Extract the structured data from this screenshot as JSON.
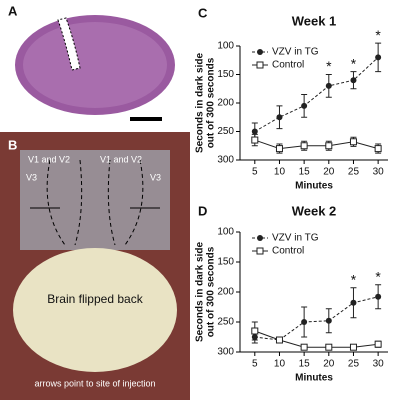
{
  "panels": {
    "a": "A",
    "b": "B",
    "c": "C",
    "d": "D"
  },
  "photo": {
    "label_left_v12": "V1 and V2",
    "label_right_v12": "V1 and V2",
    "label_left_v3": "V3",
    "label_right_v3": "V3",
    "brain": "Brain flipped back",
    "caption": "arrows point to site of injection"
  },
  "chart_data": [
    {
      "type": "line",
      "title": "Week 1",
      "xlabel": "Minutes",
      "ylabel": [
        "Seconds in dark side",
        "out of 300 seconds"
      ],
      "x": [
        5,
        10,
        15,
        20,
        25,
        30
      ],
      "xlim": [
        2,
        32
      ],
      "xticks": [
        5,
        10,
        15,
        20,
        25,
        30
      ],
      "ylim": [
        100,
        300
      ],
      "yticks": [
        100,
        150,
        200,
        250,
        300
      ],
      "invert_y": true,
      "legend": "upper left",
      "series": [
        {
          "name": "VZV in TG",
          "color": "#222222",
          "marker": "filled-circle",
          "dashed": true,
          "values": [
            250,
            225,
            205,
            170,
            160,
            120
          ],
          "errors": [
            15,
            20,
            20,
            20,
            15,
            25
          ]
        },
        {
          "name": "Control",
          "color": "#222222",
          "marker": "open-square",
          "dashed": false,
          "values": [
            265,
            280,
            275,
            275,
            268,
            280
          ],
          "errors": [
            10,
            8,
            8,
            8,
            8,
            8
          ]
        }
      ],
      "annotations": [
        {
          "x": 20,
          "text": "*"
        },
        {
          "x": 25,
          "text": "*"
        },
        {
          "x": 30,
          "text": "*"
        }
      ]
    },
    {
      "type": "line",
      "title": "Week 2",
      "xlabel": "Minutes",
      "ylabel": [
        "Seconds in dark side",
        "out of 300 seconds"
      ],
      "x": [
        5,
        10,
        15,
        20,
        25,
        30
      ],
      "xlim": [
        2,
        32
      ],
      "xticks": [
        5,
        10,
        15,
        20,
        25,
        30
      ],
      "ylim": [
        100,
        300
      ],
      "yticks": [
        100,
        150,
        200,
        250,
        300
      ],
      "invert_y": true,
      "legend": "upper left",
      "series": [
        {
          "name": "VZV in TG",
          "color": "#222222",
          "marker": "filled-circle",
          "dashed": true,
          "values": [
            275,
            280,
            250,
            248,
            218,
            208
          ],
          "errors": [
            10,
            5,
            25,
            20,
            25,
            20
          ]
        },
        {
          "name": "Control",
          "color": "#222222",
          "marker": "open-square",
          "dashed": false,
          "values": [
            265,
            280,
            292,
            292,
            292,
            287
          ],
          "errors": [
            15,
            5,
            3,
            3,
            3,
            5
          ]
        }
      ],
      "annotations": [
        {
          "x": 25,
          "text": "*"
        },
        {
          "x": 30,
          "text": "*"
        }
      ]
    }
  ]
}
